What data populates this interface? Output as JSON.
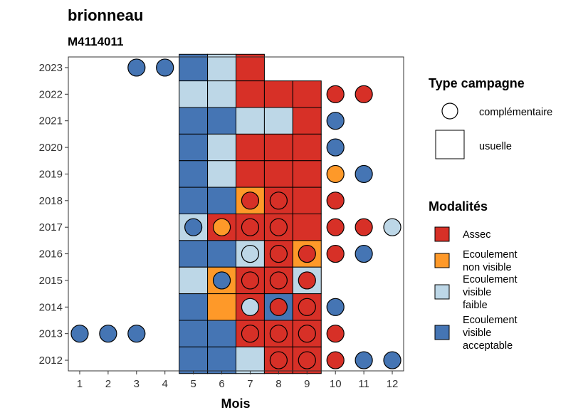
{
  "title": "brionneau",
  "subtitle": "M4114011",
  "chart_data": {
    "type": "heatmap",
    "xlabel": "Mois",
    "x": [
      1,
      2,
      3,
      4,
      5,
      6,
      7,
      8,
      9,
      10,
      11,
      12
    ],
    "y": [
      2012,
      2013,
      2014,
      2015,
      2016,
      2017,
      2018,
      2019,
      2020,
      2021,
      2022,
      2023
    ],
    "modalities": [
      {
        "key": "A",
        "label_lines": [
          "Assec"
        ],
        "color": "#d73027"
      },
      {
        "key": "N",
        "label_lines": [
          "Ecoulement",
          "non visible"
        ],
        "color": "#fe9929"
      },
      {
        "key": "F",
        "label_lines": [
          "Ecoulement",
          "visible",
          "faible"
        ],
        "color": "#bdd7e7"
      },
      {
        "key": "V",
        "label_lines": [
          "Ecoulement",
          "visible",
          "acceptable"
        ],
        "color": "#4575b4"
      }
    ],
    "campaign_types": [
      {
        "key": "complementaire",
        "label": "complémentaire",
        "shape": "circle"
      },
      {
        "key": "usuelle",
        "label": "usuelle",
        "shape": "square"
      }
    ],
    "legend_titles": {
      "campaign": "Type campagne",
      "modalities": "Modalités"
    },
    "usuelle": [
      {
        "year": 2023,
        "month": 5,
        "m": "V"
      },
      {
        "year": 2023,
        "month": 6,
        "m": "F"
      },
      {
        "year": 2023,
        "month": 7,
        "m": "A"
      },
      {
        "year": 2022,
        "month": 5,
        "m": "F"
      },
      {
        "year": 2022,
        "month": 6,
        "m": "F"
      },
      {
        "year": 2022,
        "month": 7,
        "m": "A"
      },
      {
        "year": 2022,
        "month": 8,
        "m": "A"
      },
      {
        "year": 2022,
        "month": 9,
        "m": "A"
      },
      {
        "year": 2021,
        "month": 5,
        "m": "V"
      },
      {
        "year": 2021,
        "month": 6,
        "m": "V"
      },
      {
        "year": 2021,
        "month": 7,
        "m": "F"
      },
      {
        "year": 2021,
        "month": 8,
        "m": "F"
      },
      {
        "year": 2021,
        "month": 9,
        "m": "A"
      },
      {
        "year": 2020,
        "month": 5,
        "m": "V"
      },
      {
        "year": 2020,
        "month": 6,
        "m": "F"
      },
      {
        "year": 2020,
        "month": 7,
        "m": "A"
      },
      {
        "year": 2020,
        "month": 8,
        "m": "A"
      },
      {
        "year": 2020,
        "month": 9,
        "m": "A"
      },
      {
        "year": 2019,
        "month": 5,
        "m": "V"
      },
      {
        "year": 2019,
        "month": 6,
        "m": "F"
      },
      {
        "year": 2019,
        "month": 7,
        "m": "A"
      },
      {
        "year": 2019,
        "month": 8,
        "m": "A"
      },
      {
        "year": 2019,
        "month": 9,
        "m": "A"
      },
      {
        "year": 2018,
        "month": 5,
        "m": "V"
      },
      {
        "year": 2018,
        "month": 6,
        "m": "V"
      },
      {
        "year": 2018,
        "month": 7,
        "m": "N"
      },
      {
        "year": 2018,
        "month": 8,
        "m": "A"
      },
      {
        "year": 2018,
        "month": 9,
        "m": "A"
      },
      {
        "year": 2017,
        "month": 5,
        "m": "F"
      },
      {
        "year": 2017,
        "month": 6,
        "m": "A"
      },
      {
        "year": 2017,
        "month": 7,
        "m": "A"
      },
      {
        "year": 2017,
        "month": 8,
        "m": "A"
      },
      {
        "year": 2017,
        "month": 9,
        "m": "A"
      },
      {
        "year": 2016,
        "month": 5,
        "m": "V"
      },
      {
        "year": 2016,
        "month": 6,
        "m": "V"
      },
      {
        "year": 2016,
        "month": 7,
        "m": "F"
      },
      {
        "year": 2016,
        "month": 8,
        "m": "A"
      },
      {
        "year": 2016,
        "month": 9,
        "m": "N"
      },
      {
        "year": 2015,
        "month": 5,
        "m": "F"
      },
      {
        "year": 2015,
        "month": 6,
        "m": "N"
      },
      {
        "year": 2015,
        "month": 7,
        "m": "A"
      },
      {
        "year": 2015,
        "month": 8,
        "m": "A"
      },
      {
        "year": 2015,
        "month": 9,
        "m": "F"
      },
      {
        "year": 2014,
        "month": 5,
        "m": "V"
      },
      {
        "year": 2014,
        "month": 6,
        "m": "N"
      },
      {
        "year": 2014,
        "month": 7,
        "m": "A"
      },
      {
        "year": 2014,
        "month": 8,
        "m": "V"
      },
      {
        "year": 2014,
        "month": 9,
        "m": "A"
      },
      {
        "year": 2013,
        "month": 5,
        "m": "V"
      },
      {
        "year": 2013,
        "month": 6,
        "m": "V"
      },
      {
        "year": 2013,
        "month": 7,
        "m": "A"
      },
      {
        "year": 2013,
        "month": 8,
        "m": "A"
      },
      {
        "year": 2013,
        "month": 9,
        "m": "A"
      },
      {
        "year": 2012,
        "month": 5,
        "m": "V"
      },
      {
        "year": 2012,
        "month": 6,
        "m": "V"
      },
      {
        "year": 2012,
        "month": 7,
        "m": "F"
      },
      {
        "year": 2012,
        "month": 8,
        "m": "A"
      },
      {
        "year": 2012,
        "month": 9,
        "m": "A"
      }
    ],
    "complementaire": [
      {
        "year": 2023,
        "month": 3,
        "m": "V"
      },
      {
        "year": 2023,
        "month": 4,
        "m": "V"
      },
      {
        "year": 2022,
        "month": 10,
        "m": "A"
      },
      {
        "year": 2022,
        "month": 11,
        "m": "A"
      },
      {
        "year": 2021,
        "month": 10,
        "m": "V"
      },
      {
        "year": 2020,
        "month": 10,
        "m": "V"
      },
      {
        "year": 2019,
        "month": 10,
        "m": "N"
      },
      {
        "year": 2019,
        "month": 11,
        "m": "V"
      },
      {
        "year": 2018,
        "month": 7,
        "m": "A"
      },
      {
        "year": 2018,
        "month": 8,
        "m": "A"
      },
      {
        "year": 2018,
        "month": 10,
        "m": "A"
      },
      {
        "year": 2017,
        "month": 5,
        "m": "V"
      },
      {
        "year": 2017,
        "month": 6,
        "m": "N"
      },
      {
        "year": 2017,
        "month": 7,
        "m": "A"
      },
      {
        "year": 2017,
        "month": 8,
        "m": "A"
      },
      {
        "year": 2017,
        "month": 10,
        "m": "A"
      },
      {
        "year": 2017,
        "month": 11,
        "m": "A"
      },
      {
        "year": 2017,
        "month": 12,
        "m": "F"
      },
      {
        "year": 2016,
        "month": 7,
        "m": "F"
      },
      {
        "year": 2016,
        "month": 8,
        "m": "A"
      },
      {
        "year": 2016,
        "month": 9,
        "m": "A"
      },
      {
        "year": 2016,
        "month": 10,
        "m": "A"
      },
      {
        "year": 2016,
        "month": 11,
        "m": "V"
      },
      {
        "year": 2015,
        "month": 6,
        "m": "V"
      },
      {
        "year": 2015,
        "month": 7,
        "m": "A"
      },
      {
        "year": 2015,
        "month": 8,
        "m": "A"
      },
      {
        "year": 2015,
        "month": 9,
        "m": "A"
      },
      {
        "year": 2014,
        "month": 7,
        "m": "F"
      },
      {
        "year": 2014,
        "month": 8,
        "m": "A"
      },
      {
        "year": 2014,
        "month": 9,
        "m": "A"
      },
      {
        "year": 2014,
        "month": 10,
        "m": "V"
      },
      {
        "year": 2013,
        "month": 1,
        "m": "V"
      },
      {
        "year": 2013,
        "month": 2,
        "m": "V"
      },
      {
        "year": 2013,
        "month": 3,
        "m": "V"
      },
      {
        "year": 2013,
        "month": 7,
        "m": "A"
      },
      {
        "year": 2013,
        "month": 8,
        "m": "A"
      },
      {
        "year": 2013,
        "month": 9,
        "m": "A"
      },
      {
        "year": 2013,
        "month": 10,
        "m": "A"
      },
      {
        "year": 2012,
        "month": 8,
        "m": "A"
      },
      {
        "year": 2012,
        "month": 9,
        "m": "A"
      },
      {
        "year": 2012,
        "month": 10,
        "m": "A"
      },
      {
        "year": 2012,
        "month": 11,
        "m": "V"
      },
      {
        "year": 2012,
        "month": 12,
        "m": "V"
      }
    ]
  }
}
